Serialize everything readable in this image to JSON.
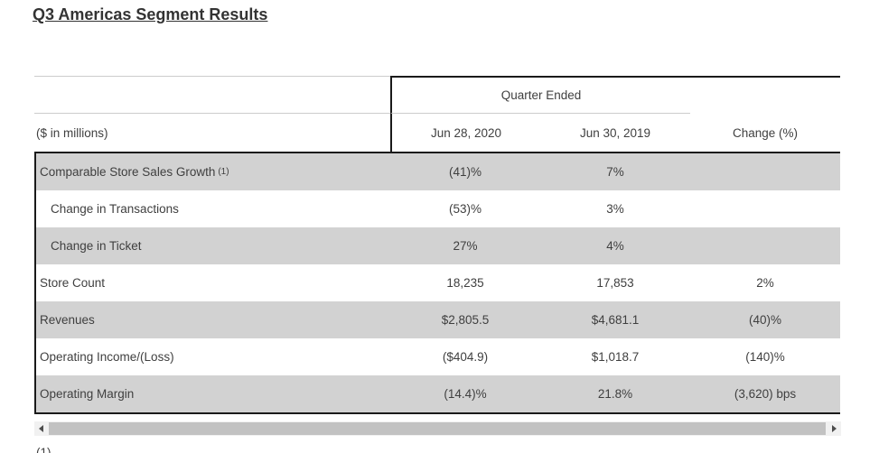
{
  "title": "Q3 Americas Segment Results",
  "table": {
    "group_header": "Quarter Ended",
    "unit_label": "($ in millions)",
    "columns": [
      "Jun 28, 2020",
      "Jun 30, 2019",
      "Change (%)"
    ],
    "rows": [
      {
        "label": "Comparable Store Sales Growth",
        "superscript": "(1)",
        "indent": false,
        "shaded": true,
        "values": [
          "(41)%",
          "7%",
          ""
        ]
      },
      {
        "label": "Change in Transactions",
        "indent": true,
        "shaded": false,
        "values": [
          "(53)%",
          "3%",
          ""
        ]
      },
      {
        "label": "Change in Ticket",
        "indent": true,
        "shaded": true,
        "values": [
          "27%",
          "4%",
          ""
        ]
      },
      {
        "label": "Store Count",
        "indent": false,
        "shaded": false,
        "values": [
          "18,235",
          "17,853",
          "2%"
        ]
      },
      {
        "label": "Revenues",
        "indent": false,
        "shaded": true,
        "values": [
          "$2,805.5",
          "$4,681.1",
          "(40)%"
        ]
      },
      {
        "label": "Operating Income/(Loss)",
        "indent": false,
        "shaded": false,
        "values": [
          "($404.9)",
          "$1,018.7",
          "(140)%"
        ]
      },
      {
        "label": "Operating Margin",
        "indent": false,
        "shaded": true,
        "values": [
          "(14.4)%",
          "21.8%",
          "(3,620) bps"
        ]
      }
    ]
  },
  "footnote_fragment": "(1)",
  "colors": {
    "row_shading": "#d2d2d2",
    "dark_border": "#1a1a1a",
    "light_border": "#cccccc",
    "text": "#3f3f3f",
    "scrollbar_thumb": "#c2c2c2",
    "scrollbar_track": "#f1f1f1"
  }
}
